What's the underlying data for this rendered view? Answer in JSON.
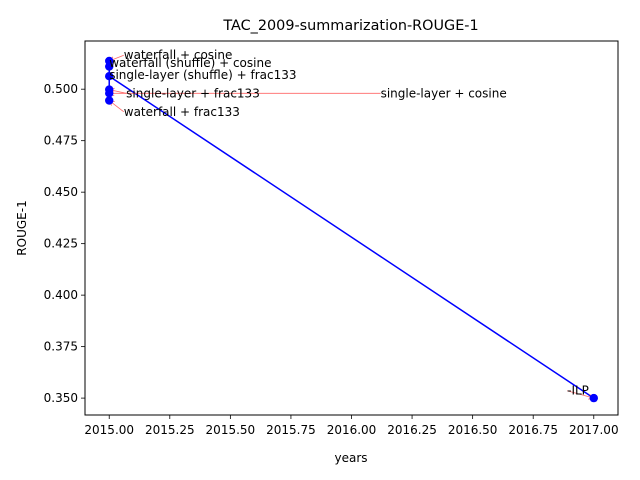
{
  "chart_data": {
    "type": "scatter",
    "title": "TAC_2009-summarization-ROUGE-1",
    "xlabel": "years",
    "ylabel": "ROUGE-1",
    "xlim": [
      2014.9,
      2017.1
    ],
    "ylim": [
      0.3418,
      0.5234
    ],
    "grid": false,
    "x_ticks": [
      2015.0,
      2015.25,
      2015.5,
      2015.75,
      2016.0,
      2016.25,
      2016.5,
      2016.75,
      2017.0
    ],
    "x_tick_labels": [
      "2015.00",
      "2015.25",
      "2015.50",
      "2015.75",
      "2016.00",
      "2016.25",
      "2016.50",
      "2016.75",
      "2017.00"
    ],
    "y_ticks": [
      0.35,
      0.375,
      0.4,
      0.425,
      0.45,
      0.475,
      0.5
    ],
    "y_tick_labels": [
      "0.350",
      "0.375",
      "0.400",
      "0.425",
      "0.450",
      "0.475",
      "0.500"
    ],
    "line_color": "#0000ff",
    "marker_color": "#0000ff",
    "arrow_color": "#ff6666",
    "points": [
      {
        "label": "waterfall + cosine",
        "x": 2015.0,
        "y": 0.5137,
        "text_x": 2015.06,
        "text_y": 0.5165
      },
      {
        "label": "waterfall (shuffle) + cosine",
        "x": 2015.0,
        "y": 0.511,
        "text_x": 2015.0,
        "text_y": 0.5126
      },
      {
        "label": "single-layer (shuffle) + frac133",
        "x": 2015.0,
        "y": 0.5063,
        "text_x": 2015.0,
        "text_y": 0.507
      },
      {
        "label": "single-layer + frac133",
        "x": 2015.0,
        "y": 0.4998,
        "text_x": 2015.07,
        "text_y": 0.498
      },
      {
        "label": "single-layer + cosine",
        "x": 2015.0,
        "y": 0.498,
        "text_x": 2016.12,
        "text_y": 0.498
      },
      {
        "label": "waterfall + frac133",
        "x": 2015.0,
        "y": 0.4945,
        "text_x": 2015.06,
        "text_y": 0.489
      },
      {
        "label": "-ILP",
        "x": 2017.0,
        "y": 0.35,
        "text_x": 2016.89,
        "text_y": 0.3536
      }
    ],
    "line_path_order": [
      1,
      0,
      3,
      4,
      5,
      2,
      6
    ]
  }
}
